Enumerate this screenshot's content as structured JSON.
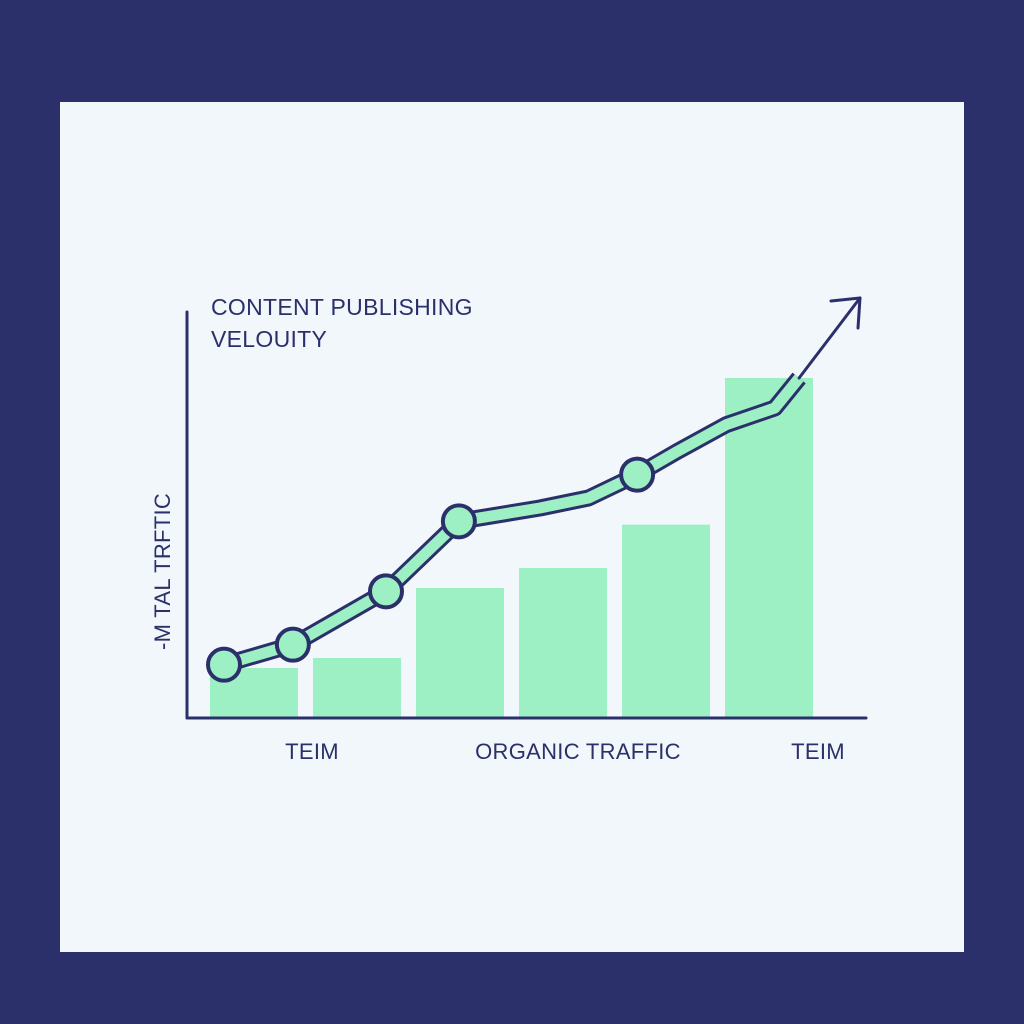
{
  "colors": {
    "frame": "#2b306b",
    "card": "#f2f7fb",
    "bar": "#9cf0c4",
    "line": "#2b306b",
    "marker_fill": "#9cf0c4"
  },
  "chart_data": {
    "type": "bar",
    "title_lines": [
      "CONTENT PUBLISHING",
      "VELOUITY"
    ],
    "ylabel": "-M   TAL TRFTIC",
    "x_labels": [
      "TEIM",
      "ORGANIC TRAFFIC",
      "TEIM"
    ],
    "bars": {
      "values": [
        1.5,
        1.8,
        3.9,
        4.5,
        5.8,
        10.2
      ]
    },
    "line": {
      "points": [
        {
          "x": 0.0,
          "y": 1.6
        },
        {
          "x": 0.85,
          "y": 2.2
        },
        {
          "x": 2.0,
          "y": 3.8
        },
        {
          "x": 2.9,
          "y": 5.9
        },
        {
          "x": 3.9,
          "y": 6.3
        },
        {
          "x": 4.5,
          "y": 6.6
        },
        {
          "x": 5.1,
          "y": 7.3
        },
        {
          "x": 5.6,
          "y": 8.0
        },
        {
          "x": 6.2,
          "y": 8.8
        },
        {
          "x": 6.8,
          "y": 9.3
        },
        {
          "x": 7.1,
          "y": 10.2
        }
      ],
      "markers": [
        0,
        1,
        2,
        3,
        6
      ]
    },
    "ylim": [
      0,
      12
    ],
    "grid": false,
    "legend": "none"
  }
}
